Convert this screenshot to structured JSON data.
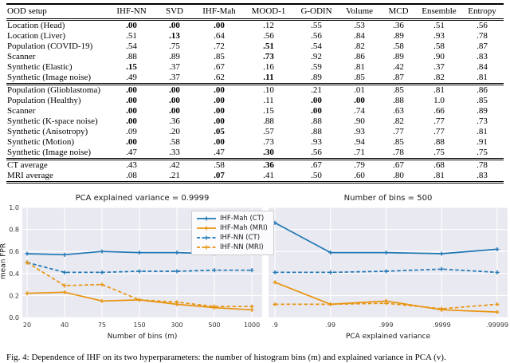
{
  "table": {
    "columns": [
      "OOD setup",
      "IHF-NN",
      "SVD",
      "IHF-Mah",
      "MOOD-1",
      "G-ODIN",
      "Volume",
      "MCD",
      "Ensemble",
      "Entropy"
    ],
    "sections": [
      {
        "rows": [
          {
            "label": "Location (Head)",
            "values": [
              ".00",
              ".00",
              ".00",
              ".12",
              ".55",
              ".53",
              ".36",
              ".51",
              ".56"
            ],
            "bold": [
              0,
              1,
              2
            ]
          },
          {
            "label": "Location (Liver)",
            "values": [
              ".51",
              ".13",
              ".64",
              ".56",
              ".56",
              ".84",
              ".89",
              ".93",
              ".78"
            ],
            "bold": [
              1
            ]
          },
          {
            "label": "Population (COVID-19)",
            "values": [
              ".54",
              ".75",
              ".72",
              ".51",
              ".54",
              ".82",
              ".58",
              ".58",
              ".87"
            ],
            "bold": [
              3
            ]
          },
          {
            "label": "Scanner",
            "values": [
              ".88",
              ".89",
              ".85",
              ".73",
              ".92",
              ".86",
              ".89",
              ".90",
              ".83"
            ],
            "bold": [
              3
            ]
          },
          {
            "label": "Synthetic (Elastic)",
            "values": [
              ".15",
              ".37",
              ".67",
              ".16",
              ".59",
              ".81",
              ".42",
              ".37",
              ".84"
            ],
            "bold": [
              0
            ]
          },
          {
            "label": "Synthetic (Image noise)",
            "values": [
              ".49",
              ".37",
              ".62",
              ".11",
              ".89",
              ".85",
              ".87",
              ".82",
              ".81"
            ],
            "bold": [
              3
            ]
          }
        ]
      },
      {
        "rows": [
          {
            "label": "Population (Glioblastoma)",
            "values": [
              ".00",
              ".00",
              ".00",
              ".10",
              ".21",
              ".01",
              ".85",
              ".81",
              ".86"
            ],
            "bold": [
              0,
              1,
              2
            ]
          },
          {
            "label": "Population (Healthy)",
            "values": [
              ".00",
              ".00",
              ".00",
              ".11",
              ".00",
              ".00",
              ".88",
              "1.0",
              ".85"
            ],
            "bold": [
              0,
              1,
              2,
              4,
              5
            ]
          },
          {
            "label": "Scanner",
            "values": [
              ".00",
              ".00",
              ".00",
              ".15",
              ".00",
              ".74",
              ".63",
              ".66",
              ".89"
            ],
            "bold": [
              0,
              1,
              2,
              4
            ]
          },
          {
            "label": "Synthetic (K-space noise)",
            "values": [
              ".00",
              ".36",
              ".00",
              ".88",
              ".88",
              ".90",
              ".82",
              ".77",
              ".73"
            ],
            "bold": [
              0,
              2
            ]
          },
          {
            "label": "Synthetic (Anisotropy)",
            "values": [
              ".09",
              ".20",
              ".05",
              ".57",
              ".88",
              ".93",
              ".77",
              ".77",
              ".81"
            ],
            "bold": [
              2
            ]
          },
          {
            "label": "Synthetic (Motion)",
            "values": [
              ".00",
              ".58",
              ".00",
              ".73",
              ".93",
              ".94",
              ".85",
              ".88",
              ".91"
            ],
            "bold": [
              0,
              2
            ]
          },
          {
            "label": "Synthetic (Image noise)",
            "values": [
              ".47",
              ".33",
              ".47",
              ".30",
              ".56",
              ".71",
              ".78",
              ".75",
              ".75"
            ],
            "bold": [
              3
            ]
          }
        ]
      },
      {
        "rows": [
          {
            "label": "CT average",
            "values": [
              ".43",
              ".42",
              ".58",
              ".36",
              ".67",
              ".79",
              ".67",
              ".68",
              ".78"
            ],
            "bold": [
              3
            ]
          },
          {
            "label": "MRI average",
            "values": [
              ".08",
              ".21",
              ".07",
              ".41",
              ".50",
              ".60",
              ".80",
              ".81",
              ".83"
            ],
            "bold": [
              2
            ]
          }
        ]
      }
    ]
  },
  "chart_data": [
    {
      "type": "line",
      "title": "PCA explained variance = 0.9999",
      "xlabel": "Number of bins (m)",
      "ylabel": "mean FPR",
      "categories": [
        "20",
        "40",
        "75",
        "150",
        "300",
        "500",
        "1000"
      ],
      "ylim": [
        0,
        1
      ],
      "yticks": [
        "0.0",
        "0.2",
        "0.4",
        "0.6",
        "0.8",
        "1.0"
      ],
      "grid": true,
      "legend_position": "upper right",
      "series": [
        {
          "name": "IHF-Mah (CT)",
          "color": "#1f77b4",
          "dash": false,
          "values": [
            0.58,
            0.57,
            0.6,
            0.59,
            0.59,
            0.58,
            0.59
          ]
        },
        {
          "name": "IHF-Mah (MRI)",
          "color": "#e8940f",
          "dash": false,
          "values": [
            0.22,
            0.23,
            0.15,
            0.16,
            0.12,
            0.09,
            0.07
          ]
        },
        {
          "name": "IHF-NN (CT)",
          "color": "#1f77b4",
          "dash": true,
          "values": [
            0.5,
            0.41,
            0.41,
            0.42,
            0.42,
            0.43,
            0.43
          ]
        },
        {
          "name": "IHF-NN (MRI)",
          "color": "#e8940f",
          "dash": true,
          "values": [
            0.5,
            0.29,
            0.3,
            0.16,
            0.14,
            0.1,
            0.1
          ]
        }
      ]
    },
    {
      "type": "line",
      "title": "Number of bins = 500",
      "xlabel": "PCA explained variance",
      "ylabel": "",
      "categories": [
        ".9",
        ".99",
        ".999",
        ".9999",
        ".99999"
      ],
      "ylim": [
        0,
        1
      ],
      "yticks": [
        "0.0",
        "0.2",
        "0.4",
        "0.6",
        "0.8",
        "1.0"
      ],
      "grid": true,
      "legend_position": "none",
      "series": [
        {
          "name": "IHF-Mah (CT)",
          "color": "#1f77b4",
          "dash": false,
          "values": [
            0.86,
            0.59,
            0.59,
            0.58,
            0.62
          ]
        },
        {
          "name": "IHF-Mah (MRI)",
          "color": "#e8940f",
          "dash": false,
          "values": [
            0.32,
            0.12,
            0.15,
            0.07,
            0.05
          ]
        },
        {
          "name": "IHF-NN (CT)",
          "color": "#1f77b4",
          "dash": true,
          "values": [
            0.41,
            0.41,
            0.42,
            0.44,
            0.41
          ]
        },
        {
          "name": "IHF-NN (MRI)",
          "color": "#e8940f",
          "dash": true,
          "values": [
            0.12,
            0.12,
            0.13,
            0.08,
            0.12
          ]
        }
      ]
    }
  ],
  "theme": {
    "plot_bg": "#e9e9f1",
    "grid_color": "#ffffff",
    "tick_color": "#333333"
  },
  "caption": "Fig. 4: Dependence of IHF on its two hyperparameters: the number of histogram bins (m) and explained variance in PCA (v)."
}
